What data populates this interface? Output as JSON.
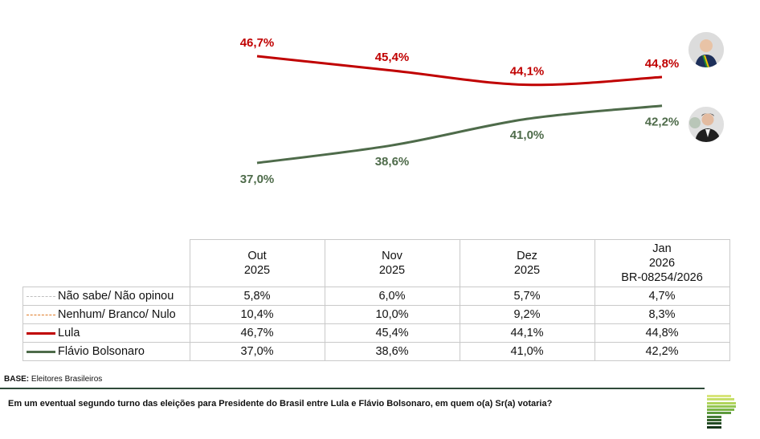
{
  "chart_data": {
    "type": "line",
    "title": "",
    "categories": [
      "Out 2025",
      "Nov 2025",
      "Dez 2025",
      "Jan 2026"
    ],
    "series": [
      {
        "name": "Lula",
        "color": "#c00000",
        "values": [
          46.7,
          45.4,
          44.1,
          44.8
        ],
        "labels": [
          "46,7%",
          "45,4%",
          "44,1%",
          "44,8%"
        ]
      },
      {
        "name": "Flávio Bolsonaro",
        "color": "#4e6b4a",
        "values": [
          37.0,
          38.6,
          41.0,
          42.2
        ],
        "labels": [
          "37,0%",
          "38,6%",
          "41,0%",
          "42,2%"
        ]
      }
    ],
    "xlabel": "",
    "ylabel": "",
    "grid": false,
    "legend": "table-below"
  },
  "avatars": {
    "lula": "Lula portrait",
    "flavio": "Flávio Bolsonaro portrait"
  },
  "table": {
    "headers": [
      [
        "Out",
        "2025"
      ],
      [
        "Nov",
        "2025"
      ],
      [
        "Dez",
        "2025"
      ],
      [
        "Jan",
        "2026",
        "BR-08254/2026"
      ]
    ],
    "rows": [
      {
        "label": "Não sabe/ Não opinou",
        "legend_style": "dashed",
        "color": "#bfbfbf",
        "values": [
          "5,8%",
          "6,0%",
          "5,7%",
          "4,7%"
        ]
      },
      {
        "label": "Nenhum/ Branco/ Nulo",
        "legend_style": "dashed",
        "color": "#e07b27",
        "values": [
          "10,4%",
          "10,0%",
          "9,2%",
          "8,3%"
        ]
      },
      {
        "label": "Lula",
        "legend_style": "solid",
        "color": "#c00000",
        "values": [
          "46,7%",
          "45,4%",
          "44,1%",
          "44,8%"
        ]
      },
      {
        "label": "Flávio Bolsonaro",
        "legend_style": "solid",
        "color": "#4e6b4a",
        "values": [
          "37,0%",
          "38,6%",
          "41,0%",
          "42,2%"
        ]
      }
    ]
  },
  "footer": {
    "base_label": "BASE:",
    "base_value": " Eleitores Brasileiros",
    "question": "Em um eventual segundo turno das eleições para Presidente do Brasil entre Lula e Flávio Bolsonaro, em quem o(a) Sr(a) votaria?"
  }
}
